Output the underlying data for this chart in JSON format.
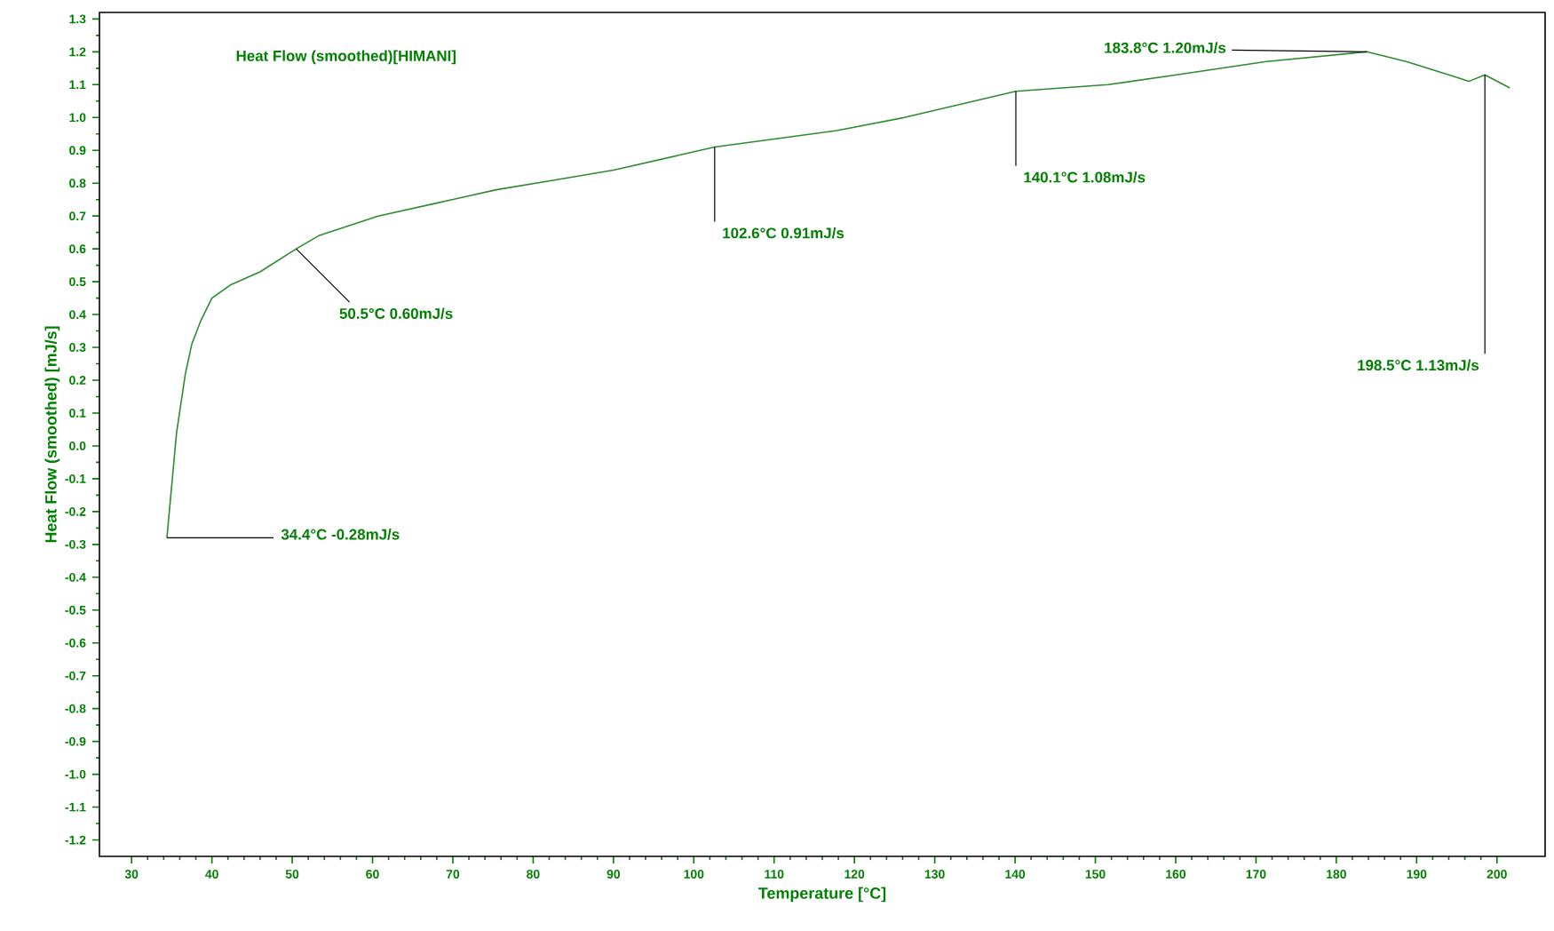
{
  "chart_data": {
    "type": "line",
    "title": "Heat Flow (smoothed)[HIMANI]",
    "xlabel": "Temperature  [°C]",
    "ylabel": "Heat Flow (smoothed)  [mJ/s]",
    "x": [
      34.4,
      35.6,
      36.7,
      37.5,
      38.6,
      40.0,
      42.3,
      46.0,
      50.5,
      53.3,
      60.7,
      68.1,
      75.4,
      82.8,
      90.0,
      102.6,
      117.8,
      126.2,
      140.1,
      151.6,
      160.1,
      171.1,
      183.8,
      188.8,
      194.0,
      196.5,
      198.5,
      201.6
    ],
    "series": [
      {
        "color": "#2e8b2e",
        "values": [
          -0.28,
          0.04,
          0.22,
          0.31,
          0.38,
          0.45,
          0.49,
          0.53,
          0.6,
          0.64,
          0.7,
          0.74,
          0.78,
          0.81,
          0.84,
          0.91,
          0.96,
          1.0,
          1.08,
          1.1,
          1.13,
          1.17,
          1.2,
          1.17,
          1.13,
          1.11,
          1.13,
          1.09
        ]
      }
    ],
    "xlim": [
      26,
      206
    ],
    "ylim": [
      -1.25,
      1.32
    ],
    "xticks": [
      30,
      40,
      50,
      60,
      70,
      80,
      90,
      100,
      110,
      120,
      130,
      140,
      150,
      160,
      170,
      180,
      190,
      200
    ],
    "yticks": [
      {
        "value": 1.3,
        "label": "1.3"
      },
      {
        "value": 1.2,
        "label": "1.2"
      },
      {
        "value": 1.1,
        "label": "1.1"
      },
      {
        "value": 1.0,
        "label": "1.0"
      },
      {
        "value": 0.9,
        "label": "0.9"
      },
      {
        "value": 0.8,
        "label": "0.8"
      },
      {
        "value": 0.7,
        "label": "0.7"
      },
      {
        "value": 0.6,
        "label": "0.6"
      },
      {
        "value": 0.5,
        "label": "0.5"
      },
      {
        "value": 0.4,
        "label": "0.4"
      },
      {
        "value": 0.3,
        "label": "0.3"
      },
      {
        "value": 0.2,
        "label": "0.2"
      },
      {
        "value": 0.1,
        "label": "0.1"
      },
      {
        "value": 0.0,
        "label": "0.0"
      },
      {
        "value": -0.1,
        "label": "-0.1"
      },
      {
        "value": -0.2,
        "label": "-0.2"
      },
      {
        "value": -0.3,
        "label": "-0.3"
      },
      {
        "value": -0.4,
        "label": "-0.4"
      },
      {
        "value": -0.5,
        "label": "-0.5"
      },
      {
        "value": -0.6,
        "label": "-0.6"
      },
      {
        "value": -0.7,
        "label": "-0.7"
      },
      {
        "value": -0.8,
        "label": "-0.8"
      },
      {
        "value": -0.9,
        "label": "-0.9"
      },
      {
        "value": -1.0,
        "label": "-1.0"
      },
      {
        "value": -1.1,
        "label": "-1.1"
      },
      {
        "value": -1.2,
        "label": "-1.2"
      }
    ],
    "annotations": [
      {
        "text": "34.4°C  -0.28mJ/s",
        "x": 34.4,
        "y": -0.28
      },
      {
        "text": "50.5°C  0.60mJ/s",
        "x": 50.5,
        "y": 0.6
      },
      {
        "text": "102.6°C  0.91mJ/s",
        "x": 102.6,
        "y": 0.91
      },
      {
        "text": "140.1°C  1.08mJ/s",
        "x": 140.1,
        "y": 1.08
      },
      {
        "text": "183.8°C  1.20mJ/s",
        "x": 183.8,
        "y": 1.2
      },
      {
        "text": "198.5°C  1.13mJ/s",
        "x": 198.5,
        "y": 1.13
      }
    ]
  }
}
